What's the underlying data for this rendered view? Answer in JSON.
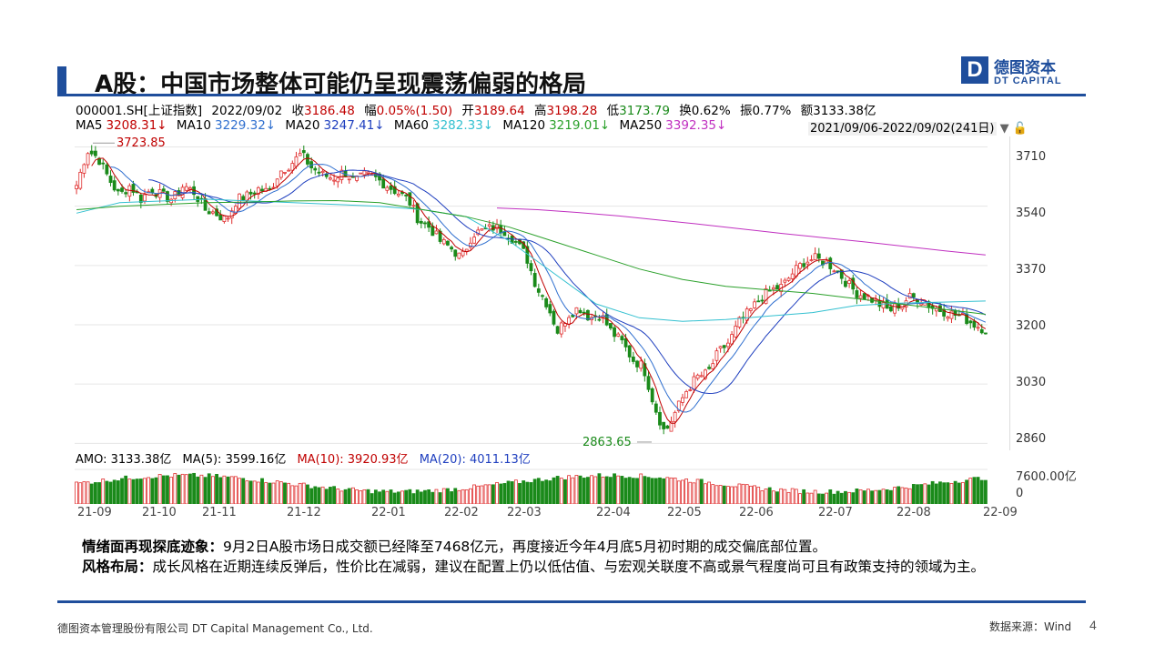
{
  "header": {
    "title": "A股：中国市场整体可能仍呈现震荡偏弱的格局",
    "logo_cn": "德图资本",
    "logo_en": "DT CAPITAL",
    "logo_mark": "D"
  },
  "quote": {
    "code": "000001.SH[上证指数]",
    "date": "2022/09/02",
    "close_label": "收",
    "close": "3186.48",
    "change_label": "幅",
    "change": "0.05%(1.50)",
    "open_label": "开",
    "open": "3189.64",
    "high_label": "高",
    "high": "3198.28",
    "low_label": "低",
    "low": "3173.79",
    "turnover_label": "换",
    "turnover": "0.62%",
    "amplitude_label": "振",
    "amplitude": "0.77%",
    "amount_label": "额",
    "amount": "3133.38亿"
  },
  "ma_readout": [
    {
      "label": "MA5",
      "value": "3208.31↓",
      "color": "#c00000"
    },
    {
      "label": "MA10",
      "value": "3229.32↓",
      "color": "#2f6fcf"
    },
    {
      "label": "MA20",
      "value": "3247.41↓",
      "color": "#1f3fbf"
    },
    {
      "label": "MA60",
      "value": "3282.33↓",
      "color": "#33c0d0"
    },
    {
      "label": "MA120",
      "value": "3219.01↓",
      "color": "#2aa02a"
    },
    {
      "label": "MA250",
      "value": "3392.35↓",
      "color": "#c030c0"
    }
  ],
  "range_label": "2021/09/06-2022/09/02(241日)",
  "annotations": {
    "high": "3723.85",
    "low": "2863.65"
  },
  "volume_readout": [
    {
      "label": "AMO: 3133.38亿",
      "color": "#000000"
    },
    {
      "label": "MA(5): 3599.16亿",
      "color": "#000000"
    },
    {
      "label": "MA(10): 3920.93亿",
      "color": "#c00000"
    },
    {
      "label": "MA(20): 4011.13亿",
      "color": "#1f3fbf"
    }
  ],
  "volume_axis": {
    "top": "7600.00亿",
    "bottom": "0"
  },
  "chart_data": {
    "type": "candlestick",
    "title": "",
    "y_ticks": [
      3710,
      3540,
      3370,
      3200,
      3030,
      2860
    ],
    "ylim": [
      2840,
      3740
    ],
    "x_tick_labels": [
      "21-09",
      "21-10",
      "21-11",
      "21-12",
      "22-01",
      "22-02",
      "22-03",
      "22-04",
      "22-05",
      "22-06",
      "22-07",
      "22-08",
      "22-09"
    ],
    "close_path": [
      3600,
      3700,
      3680,
      3620,
      3570,
      3600,
      3560,
      3590,
      3570,
      3560,
      3600,
      3580,
      3530,
      3520,
      3500,
      3560,
      3570,
      3590,
      3580,
      3640,
      3660,
      3690,
      3650,
      3630,
      3620,
      3640,
      3610,
      3630,
      3620,
      3600,
      3580,
      3560,
      3500,
      3480,
      3440,
      3420,
      3390,
      3460,
      3470,
      3480,
      3470,
      3440,
      3400,
      3310,
      3260,
      3180,
      3230,
      3250,
      3220,
      3230,
      3180,
      3150,
      3100,
      3080,
      2970,
      2890,
      2950,
      3010,
      3050,
      3060,
      3120,
      3150,
      3210,
      3240,
      3280,
      3300,
      3310,
      3350,
      3380,
      3390,
      3380,
      3360,
      3320,
      3290,
      3280,
      3260,
      3240,
      3260,
      3280,
      3270,
      3250,
      3240,
      3230,
      3220,
      3200,
      3186
    ],
    "ma_series": [
      {
        "name": "MA60",
        "color": "#33c0d0",
        "values": [
          3520,
          3550,
          3555,
          3560,
          3555,
          3550,
          3545,
          3540,
          3530,
          3510,
          3440,
          3350,
          3260,
          3220,
          3210,
          3215,
          3225,
          3235,
          3255,
          3262,
          3265,
          3268
        ]
      },
      {
        "name": "MA120",
        "color": "#2aa02a",
        "values": [
          3530,
          3540,
          3545,
          3550,
          3552,
          3555,
          3556,
          3550,
          3530,
          3510,
          3480,
          3440,
          3400,
          3360,
          3330,
          3310,
          3300,
          3290,
          3275,
          3260,
          3245,
          3230
        ]
      },
      {
        "name": "MA250",
        "color": "#c030c0",
        "values": [
          3535,
          3530,
          3522,
          3512,
          3500,
          3488,
          3475,
          3462,
          3450,
          3438,
          3425,
          3412,
          3400
        ]
      }
    ],
    "volume_ylim": [
      0,
      7600
    ]
  },
  "note": {
    "p1_head": "情绪面再现探底迹象：",
    "p1_body": "9月2日A股市场日成交额已经降至7468亿元，再度接近今年4月底5月初时期的成交偏底部位置。",
    "p2_head": "风格布局：",
    "p2_body": "成长风格在近期连续反弹后，性价比在减弱，建议在配置上仍以低估值、与宏观关联度不高或景气程度尚可且有政策支持的领域为主。"
  },
  "footer": {
    "company": "德图资本管理股份有限公司 DT Capital Management Co., Ltd.",
    "source": "数据来源：Wind",
    "page": "4"
  },
  "colors": {
    "brand": "#1f4e9c",
    "up": "#e03030",
    "down": "#1a8a1a"
  }
}
